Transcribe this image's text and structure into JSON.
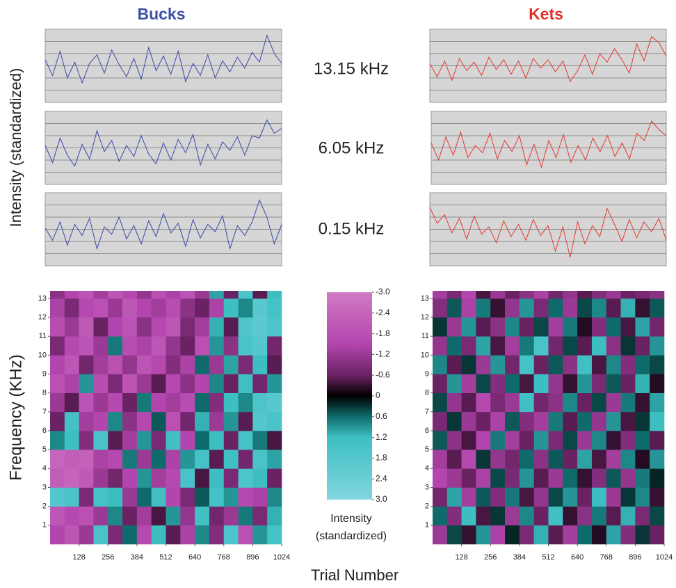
{
  "figure": {
    "column_titles": [
      "Bucks",
      "Kets"
    ],
    "trace_ylabel": "Intensity (standardized)",
    "heatmap_ylabel": "Frequency (KHz)",
    "xlabel": "Trial Number",
    "frequencies": [
      "13.15 kHz",
      "6.05 kHz",
      "0.15 kHz"
    ]
  },
  "chart_data": [
    {
      "type": "line",
      "series": [
        {
          "name": "Bucks",
          "color": "#3a48a8",
          "values": [
            0.5,
            -0.8,
            1.2,
            -1.0,
            0.3,
            -1.4,
            0.2,
            0.9,
            -0.6,
            1.3,
            0.1,
            -0.9,
            0.6,
            -1.1,
            1.5,
            -0.4,
            0.8,
            -0.7,
            1.2,
            -1.3,
            0.2,
            -0.8,
            0.9,
            -1.0,
            0.4,
            -0.5,
            0.7,
            -0.2,
            1.1,
            0.3,
            2.5,
            1.0,
            0.2
          ]
        }
      ],
      "x": [
        0,
        32,
        64,
        96,
        128,
        160,
        192,
        224,
        256,
        288,
        320,
        352,
        384,
        416,
        448,
        480,
        512,
        544,
        576,
        608,
        640,
        672,
        704,
        736,
        768,
        800,
        832,
        864,
        896,
        928,
        960,
        992,
        1024
      ],
      "xlim": [
        0,
        1024
      ],
      "ylim": [
        -3,
        3
      ],
      "grid_values": [
        -2,
        -1,
        0,
        1,
        2
      ]
    },
    {
      "type": "line",
      "series": [
        {
          "name": "Bucks",
          "color": "#3a48a8",
          "values": [
            0.2,
            -1.2,
            0.8,
            -0.6,
            -1.5,
            0.3,
            -0.9,
            1.4,
            -0.3,
            0.6,
            -1.1,
            0.2,
            -0.7,
            1.0,
            -0.5,
            -1.3,
            0.4,
            -1.0,
            0.7,
            -0.4,
            1.1,
            -1.4,
            0.3,
            -0.9,
            0.5,
            -0.2,
            0.9,
            -0.6,
            1.0,
            0.8,
            2.3,
            1.2,
            1.6
          ]
        }
      ],
      "x": [
        0,
        32,
        64,
        96,
        128,
        160,
        192,
        224,
        256,
        288,
        320,
        352,
        384,
        416,
        448,
        480,
        512,
        544,
        576,
        608,
        640,
        672,
        704,
        736,
        768,
        800,
        832,
        864,
        896,
        928,
        960,
        992,
        1024
      ],
      "xlim": [
        0,
        1024
      ],
      "ylim": [
        -3,
        3
      ],
      "grid_values": [
        -2,
        -1,
        0,
        1,
        2
      ]
    },
    {
      "type": "line",
      "series": [
        {
          "name": "Bucks",
          "color": "#3a48a8",
          "values": [
            0.1,
            -0.9,
            0.6,
            -1.3,
            0.4,
            -0.5,
            0.9,
            -1.6,
            0.2,
            -0.4,
            1.0,
            -0.8,
            0.3,
            -1.2,
            0.7,
            -0.6,
            1.3,
            -0.3,
            0.5,
            -1.4,
            0.8,
            -0.7,
            0.4,
            -0.2,
            1.1,
            -1.6,
            0.3,
            -0.5,
            0.6,
            2.4,
            1.0,
            -1.2,
            0.4
          ]
        }
      ],
      "x": [
        0,
        32,
        64,
        96,
        128,
        160,
        192,
        224,
        256,
        288,
        320,
        352,
        384,
        416,
        448,
        480,
        512,
        544,
        576,
        608,
        640,
        672,
        704,
        736,
        768,
        800,
        832,
        864,
        896,
        928,
        960,
        992,
        1024
      ],
      "xlim": [
        0,
        1024
      ],
      "ylim": [
        -3,
        3
      ],
      "grid_values": [
        -2,
        -1,
        0,
        1,
        2
      ]
    },
    {
      "type": "line",
      "series": [
        {
          "name": "Kets",
          "color": "#e03a30",
          "values": [
            0.2,
            -0.9,
            0.4,
            -1.2,
            0.6,
            -0.4,
            0.3,
            -0.8,
            0.7,
            -0.3,
            0.5,
            -0.7,
            0.4,
            -1.0,
            0.6,
            -0.2,
            0.5,
            -0.5,
            0.4,
            -1.3,
            -0.4,
            0.9,
            -0.7,
            1.0,
            0.3,
            1.4,
            0.5,
            -0.6,
            1.8,
            0.4,
            2.4,
            1.9,
            0.8
          ]
        }
      ],
      "x": [
        0,
        32,
        64,
        96,
        128,
        160,
        192,
        224,
        256,
        288,
        320,
        352,
        384,
        416,
        448,
        480,
        512,
        544,
        576,
        608,
        640,
        672,
        704,
        736,
        768,
        800,
        832,
        864,
        896,
        928,
        960,
        992,
        1024
      ],
      "xlim": [
        0,
        1024
      ],
      "ylim": [
        -3,
        3
      ],
      "grid_values": [
        -2,
        -1,
        0,
        1,
        2
      ]
    },
    {
      "type": "line",
      "series": [
        {
          "name": "Kets",
          "color": "#e03a30",
          "values": [
            0.4,
            -1.0,
            0.9,
            -0.6,
            1.3,
            -0.8,
            0.2,
            -0.4,
            1.2,
            -0.9,
            0.6,
            -0.3,
            1.0,
            -1.4,
            0.3,
            -1.6,
            0.6,
            -0.8,
            1.1,
            -1.2,
            0.2,
            -1.0,
            0.8,
            -0.3,
            1.0,
            -0.7,
            0.4,
            -0.9,
            1.2,
            0.6,
            2.2,
            1.5,
            1.0
          ]
        }
      ],
      "x": [
        0,
        32,
        64,
        96,
        128,
        160,
        192,
        224,
        256,
        288,
        320,
        352,
        384,
        416,
        448,
        480,
        512,
        544,
        576,
        608,
        640,
        672,
        704,
        736,
        768,
        800,
        832,
        864,
        896,
        928,
        960,
        992,
        1024
      ],
      "xlim": [
        0,
        1024
      ],
      "ylim": [
        -3,
        3
      ],
      "grid_values": [
        -2,
        -1,
        0,
        1,
        2
      ]
    },
    {
      "type": "line",
      "series": [
        {
          "name": "Kets",
          "color": "#e03a30",
          "values": [
            1.8,
            0.5,
            1.2,
            -0.3,
            0.9,
            -0.8,
            1.1,
            -0.4,
            0.2,
            -1.1,
            0.7,
            -0.6,
            0.4,
            -0.9,
            0.8,
            -0.5,
            0.3,
            -1.8,
            0.2,
            -2.3,
            0.6,
            -1.2,
            0.3,
            -0.6,
            1.7,
            0.4,
            -1.0,
            0.8,
            -0.7,
            0.6,
            -0.2,
            0.9,
            -0.9
          ]
        }
      ],
      "x": [
        0,
        32,
        64,
        96,
        128,
        160,
        192,
        224,
        256,
        288,
        320,
        352,
        384,
        416,
        448,
        480,
        512,
        544,
        576,
        608,
        640,
        672,
        704,
        736,
        768,
        800,
        832,
        864,
        896,
        928,
        960,
        992,
        1024
      ],
      "xlim": [
        0,
        1024
      ],
      "ylim": [
        -3,
        3
      ],
      "grid_values": [
        -2,
        -1,
        0,
        1,
        2
      ]
    },
    {
      "type": "heatmap",
      "xbins": [
        0,
        64,
        128,
        192,
        256,
        320,
        384,
        448,
        512,
        576,
        640,
        704,
        768,
        832,
        896,
        960,
        1024
      ],
      "ybins": [
        0,
        1,
        2,
        3,
        4,
        5,
        6,
        7,
        8,
        9,
        10,
        11,
        12,
        13,
        13.4
      ],
      "xlim": [
        0,
        1024
      ],
      "ylim": [
        0,
        13.4
      ],
      "xticks": [
        128,
        256,
        384,
        512,
        640,
        768,
        896,
        1024
      ],
      "yticks": [
        1,
        2,
        3,
        4,
        5,
        6,
        7,
        8,
        9,
        10,
        11,
        12,
        13
      ],
      "z": [
        [
          -1.5,
          -2,
          -1.2,
          1.5,
          -0.8,
          0.6,
          -1.6,
          1.2,
          -0.5,
          -1.4,
          0.8,
          -0.9,
          1.6,
          -1.8,
          0.9,
          1.4
        ],
        [
          -2,
          -1.6,
          -1.8,
          -1.2,
          0.8,
          -0.6,
          -1.3,
          -0.4,
          0.9,
          -1.1,
          1.3,
          -0.7,
          -1.2,
          0.7,
          -0.8,
          1.1
        ],
        [
          1.8,
          1.5,
          -0.8,
          1.4,
          1.2,
          -1.2,
          0.6,
          1.3,
          -1.5,
          -0.8,
          0.5,
          1.4,
          0.9,
          -1.6,
          -1.4,
          0.8
        ],
        [
          -2.2,
          -2.4,
          -2.1,
          -1.2,
          -0.7,
          -1.5,
          0.9,
          -1.3,
          -1.6,
          1.5,
          -0.4,
          1.2,
          -0.8,
          1.6,
          1.2,
          -0.6
        ],
        [
          -2.4,
          -2.2,
          -2.3,
          -1.4,
          -1.6,
          0.7,
          -1.2,
          0.6,
          -1.4,
          0.9,
          1.4,
          -0.5,
          1.3,
          -0.7,
          1.5,
          1.0
        ],
        [
          0.8,
          1.2,
          -0.9,
          1.5,
          -0.5,
          -1.3,
          0.9,
          -0.8,
          1.3,
          -1.5,
          0.6,
          1.2,
          -0.6,
          1.4,
          0.7,
          -0.4
        ],
        [
          -0.6,
          1.4,
          -1.3,
          -1.5,
          0.8,
          -1.0,
          -1.6,
          0.5,
          -1.8,
          -0.7,
          1.1,
          -1.2,
          0.9,
          -0.5,
          1.8,
          1.5
        ],
        [
          -1.2,
          -0.5,
          -1.9,
          -1.2,
          -1.6,
          -0.6,
          0.7,
          -1.5,
          -1.3,
          -1.7,
          0.6,
          -0.9,
          1.2,
          0.8,
          1.6,
          1.9
        ],
        [
          -1.8,
          -1.4,
          0.9,
          -1.7,
          -0.8,
          -1.9,
          -1.2,
          -0.5,
          -1.6,
          -1.0,
          -1.5,
          0.8,
          -0.6,
          1.3,
          -0.7,
          0.9
        ],
        [
          -1.5,
          -2.0,
          -0.7,
          -1.3,
          -1.8,
          -1.1,
          -1.9,
          -1.6,
          -0.9,
          -1.4,
          0.6,
          -1.2,
          1.0,
          -0.8,
          1.2,
          -0.5
        ],
        [
          -0.8,
          -1.6,
          -1.9,
          -1.2,
          0.7,
          -1.7,
          -1.4,
          -2.0,
          -1.1,
          -0.6,
          -1.8,
          0.9,
          -1.0,
          1.5,
          1.8,
          -0.7
        ],
        [
          -1.7,
          -1.2,
          -2.1,
          -0.6,
          -1.5,
          -1.9,
          -1.0,
          -1.6,
          -2.0,
          -0.8,
          -1.3,
          1.1,
          -0.5,
          1.7,
          2.0,
          1.6
        ],
        [
          -1.4,
          -0.8,
          -1.6,
          -1.8,
          -1.2,
          -2.0,
          -1.5,
          -1.3,
          -1.7,
          -1.0,
          -0.6,
          -1.4,
          1.2,
          0.8,
          1.9,
          1.4
        ],
        [
          -1.0,
          -1.5,
          -1.9,
          -1.3,
          -2.0,
          -1.6,
          -1.1,
          -1.8,
          -1.4,
          -1.9,
          -1.2,
          1.0,
          -0.6,
          1.6,
          -0.5,
          1.2
        ]
      ]
    },
    {
      "type": "heatmap",
      "xbins": [
        0,
        64,
        128,
        192,
        256,
        320,
        384,
        448,
        512,
        576,
        640,
        704,
        768,
        832,
        896,
        960,
        1024
      ],
      "ybins": [
        0,
        1,
        2,
        3,
        4,
        5,
        6,
        7,
        8,
        9,
        10,
        11,
        12,
        13,
        13.4
      ],
      "xlim": [
        0,
        1024
      ],
      "ylim": [
        0,
        13.4
      ],
      "xticks": [
        128,
        256,
        384,
        512,
        640,
        768,
        896,
        1024
      ],
      "yticks": [
        1,
        2,
        3,
        4,
        5,
        6,
        7,
        8,
        9,
        10,
        11,
        12,
        13
      ],
      "z": [
        [
          -1.2,
          0.4,
          -0.3,
          0.9,
          -1.4,
          0.2,
          -0.8,
          1.1,
          -0.5,
          -1.3,
          0.6,
          -0.2,
          1.0,
          -0.9,
          0.3,
          -0.6
        ],
        [
          0.6,
          -0.9,
          1.2,
          -0.4,
          0.3,
          -1.2,
          0.8,
          -0.6,
          1.3,
          -0.3,
          -1.0,
          0.7,
          -0.5,
          1.1,
          -0.8,
          0.4
        ],
        [
          -0.7,
          1.0,
          -1.3,
          0.5,
          -0.9,
          0.7,
          -0.4,
          -1.1,
          0.4,
          0.9,
          -0.6,
          1.2,
          -1.2,
          0.3,
          0.8,
          -0.3
        ],
        [
          -1.5,
          -1.2,
          -0.6,
          -1.4,
          0.4,
          -0.8,
          0.9,
          -0.5,
          -1.2,
          0.6,
          -0.3,
          -0.9,
          0.5,
          -1.1,
          0.7,
          0.2
        ],
        [
          -1.3,
          -0.5,
          -1.6,
          0.3,
          -1.1,
          -0.7,
          0.6,
          -1.0,
          0.5,
          -0.6,
          1.0,
          -0.4,
          -1.3,
          0.8,
          -0.2,
          0.9
        ],
        [
          0.5,
          -1.0,
          -0.4,
          -1.5,
          0.7,
          -1.3,
          -0.6,
          0.9,
          -0.8,
          0.4,
          -1.2,
          0.8,
          -0.3,
          -0.9,
          0.6,
          -0.5
        ],
        [
          -0.8,
          0.3,
          -1.2,
          -0.6,
          -1.4,
          0.5,
          -0.9,
          -1.3,
          0.7,
          -0.5,
          0.6,
          -1.1,
          0.9,
          -0.4,
          0.3,
          1.2
        ],
        [
          0.4,
          -1.1,
          -0.5,
          -1.6,
          -0.8,
          -1.2,
          1.3,
          -0.7,
          -1.0,
          0.8,
          -0.6,
          0.4,
          -1.2,
          0.7,
          -0.3,
          1.0
        ],
        [
          -0.6,
          0.9,
          -1.3,
          0.4,
          -0.9,
          0.6,
          -0.4,
          1.2,
          -1.1,
          -0.3,
          0.9,
          -0.8,
          0.5,
          -0.6,
          1.1,
          -0.2
        ],
        [
          0.8,
          -0.5,
          0.3,
          -1.2,
          0.9,
          -0.7,
          1.4,
          -0.6,
          0.5,
          -1.0,
          1.3,
          -0.4,
          0.8,
          -0.9,
          0.6,
          0.4
        ],
        [
          -1.1,
          0.6,
          -0.8,
          1.0,
          -0.4,
          -1.3,
          0.7,
          1.5,
          -0.7,
          0.4,
          -0.5,
          1.2,
          -1.0,
          0.3,
          -0.6,
          0.9
        ],
        [
          0.3,
          -1.2,
          0.9,
          -0.5,
          -1.0,
          0.8,
          -0.6,
          0.4,
          -1.3,
          0.7,
          -0.2,
          -0.9,
          0.6,
          -0.4,
          1.0,
          -0.7
        ],
        [
          -0.9,
          0.5,
          -1.4,
          0.7,
          -0.3,
          -1.1,
          0.9,
          -0.8,
          0.6,
          -1.2,
          0.4,
          0.8,
          -0.5,
          1.1,
          -0.3,
          0.5
        ],
        [
          -1.3,
          -0.8,
          -1.5,
          -0.4,
          -1.2,
          -0.6,
          -1.0,
          -1.4,
          -0.7,
          -1.1,
          -0.5,
          -0.9,
          -1.2,
          -0.6,
          -0.8,
          -1.0
        ]
      ]
    },
    {
      "type": "colorbar",
      "label_lines": [
        "Intensity",
        "(standardized)"
      ],
      "zlim": [
        -3,
        3
      ],
      "ticks": [
        {
          "value": -3,
          "label": "-3.0"
        },
        -2.4,
        -1.8,
        -1.2,
        -0.6,
        0,
        0.6,
        1.2,
        1.8,
        2.4,
        {
          "value": 3,
          "label": "3.0"
        }
      ],
      "colormap": [
        {
          "value": -3,
          "color": "#d27ac4"
        },
        {
          "value": -1.5,
          "color": "#b346ae"
        },
        {
          "value": -0.6,
          "color": "#6a2263"
        },
        {
          "value": 0,
          "color": "#000000"
        },
        {
          "value": 0.6,
          "color": "#0f6b6b"
        },
        {
          "value": 1.2,
          "color": "#3dbfc2"
        },
        {
          "value": 3,
          "color": "#82d6e0"
        }
      ]
    }
  ]
}
